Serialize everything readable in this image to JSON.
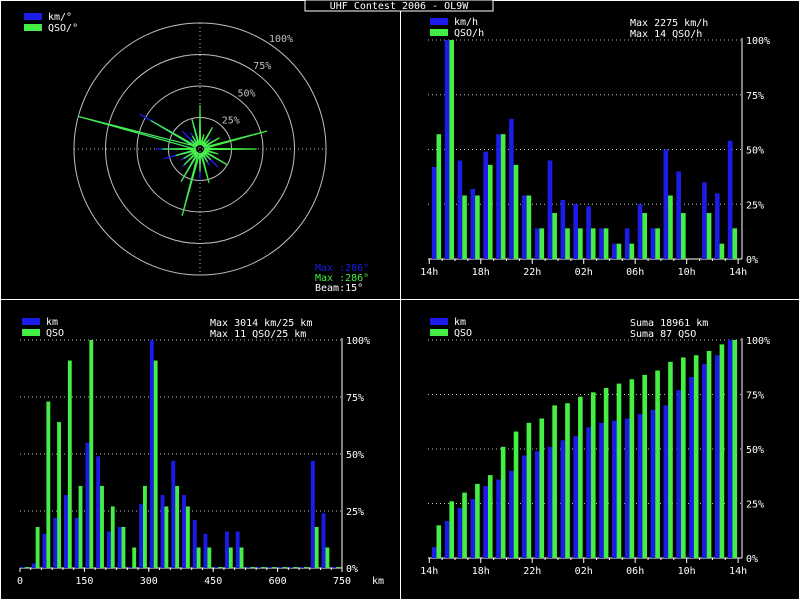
{
  "title": "UHF Contest 2006 - OL9W",
  "colors": {
    "background": "#000000",
    "panel_border": "#ffffff",
    "km_series": "#1c1ce8",
    "qso_series": "#44ee44",
    "grid": "#c0c0c0",
    "text": "#ffffff"
  },
  "chart_data": [
    {
      "type": "polar",
      "panel": "direction",
      "legend": [
        "km/°",
        "QSO/°"
      ],
      "legend_position": "top-left",
      "ring_labels": [
        "25%",
        "50%",
        "75%",
        "100%"
      ],
      "stats": [
        "Max :286°",
        "Max :286°",
        "Beam:15°"
      ],
      "azimuth": [
        0,
        15,
        30,
        45,
        60,
        75,
        90,
        105,
        120,
        135,
        150,
        165,
        180,
        195,
        210,
        225,
        240,
        255,
        270,
        285,
        300,
        315,
        330,
        345
      ],
      "series": [
        {
          "name": "km/°",
          "values": [
            0.22,
            0.1,
            0.08,
            0.12,
            0.1,
            0.2,
            0.25,
            0.12,
            0.1,
            0.2,
            0.15,
            0.12,
            0.25,
            0.55,
            0.3,
            0.2,
            0.18,
            0.3,
            0.35,
            1.0,
            0.55,
            0.2,
            0.15,
            0.25
          ]
        },
        {
          "name": "QSO/°",
          "values": [
            0.35,
            0.12,
            0.2,
            0.1,
            0.18,
            0.55,
            0.45,
            0.15,
            0.25,
            0.12,
            0.12,
            0.28,
            0.18,
            0.55,
            0.3,
            0.18,
            0.15,
            0.2,
            0.3,
            1.0,
            0.45,
            0.1,
            0.12,
            0.25
          ]
        }
      ]
    },
    {
      "type": "bar",
      "panel": "hourly",
      "legend": [
        "km/h",
        "QSO/h"
      ],
      "stats": [
        "Max  2275 km/h",
        "Max   14 QSO/h"
      ],
      "y_ticks": [
        "100%",
        "75%",
        "50%",
        "25%",
        "0%"
      ],
      "x_tick_labels": [
        "14h",
        "18h",
        "22h",
        "02h",
        "06h",
        "10h",
        "14h"
      ],
      "categories": [
        "14h",
        "15h",
        "16h",
        "17h",
        "18h",
        "19h",
        "20h",
        "21h",
        "22h",
        "23h",
        "00h",
        "01h",
        "02h",
        "03h",
        "04h",
        "05h",
        "06h",
        "07h",
        "08h",
        "09h",
        "10h",
        "11h",
        "12h",
        "13h"
      ],
      "ylim": [
        0,
        1
      ],
      "series": [
        {
          "name": "km/h",
          "values": [
            0.42,
            1.0,
            0.45,
            0.32,
            0.49,
            0.57,
            0.64,
            0.29,
            0.14,
            0.45,
            0.27,
            0.25,
            0.24,
            0.14,
            0.07,
            0.14,
            0.25,
            0.14,
            0.5,
            0.4,
            0.0,
            0.35,
            0.3,
            0.54
          ]
        },
        {
          "name": "QSO/h",
          "values": [
            0.57,
            1.0,
            0.29,
            0.29,
            0.43,
            0.57,
            0.43,
            0.29,
            0.14,
            0.21,
            0.14,
            0.14,
            0.14,
            0.14,
            0.07,
            0.07,
            0.21,
            0.14,
            0.29,
            0.21,
            0.0,
            0.21,
            0.07,
            0.14
          ]
        }
      ]
    },
    {
      "type": "bar",
      "panel": "distance",
      "legend": [
        "km",
        "QSO"
      ],
      "stats": [
        "Max  3014 km/25 km",
        "Max   11 QSO/25 km"
      ],
      "y_ticks": [
        "100%",
        "75%",
        "50%",
        "25%",
        "0%"
      ],
      "x_tick_labels": [
        "0",
        "150",
        "300",
        "450",
        "600",
        "750"
      ],
      "x_unit": "km",
      "xlim": [
        0,
        750
      ],
      "bin_size": 25,
      "bin_starts": [
        0,
        25,
        50,
        75,
        100,
        125,
        150,
        175,
        200,
        225,
        250,
        275,
        300,
        325,
        350,
        375,
        400,
        425,
        450,
        475,
        500,
        525,
        550,
        575,
        600,
        625,
        650,
        675,
        700,
        725
      ],
      "ylim": [
        0,
        1
      ],
      "series": [
        {
          "name": "km",
          "values": [
            0.01,
            0.02,
            0.15,
            0.22,
            0.32,
            0.22,
            0.55,
            0.49,
            0.16,
            0.18,
            0.0,
            0.28,
            1.0,
            0.32,
            0.47,
            0.32,
            0.21,
            0.15,
            0.0,
            0.16,
            0.16,
            0.0,
            0.01,
            0.01,
            0.01,
            0.01,
            0.01,
            0.47,
            0.24,
            0.0
          ]
        },
        {
          "name": "QSO",
          "values": [
            0.0,
            0.18,
            0.73,
            0.64,
            0.91,
            0.36,
            1.0,
            0.36,
            0.27,
            0.18,
            0.09,
            0.36,
            0.91,
            0.27,
            0.36,
            0.27,
            0.09,
            0.09,
            0.0,
            0.09,
            0.09,
            0.0,
            0.0,
            0.0,
            0.0,
            0.0,
            0.0,
            0.18,
            0.09,
            0.0
          ]
        }
      ]
    },
    {
      "type": "bar",
      "panel": "cumulative",
      "legend": [
        "km",
        "QSO"
      ],
      "stats": [
        "Suma  18961 km",
        "Suma    87 QSO"
      ],
      "y_ticks": [
        "100%",
        "75%",
        "50%",
        "25%",
        "0%"
      ],
      "x_tick_labels": [
        "14h",
        "18h",
        "22h",
        "02h",
        "06h",
        "10h",
        "14h"
      ],
      "categories": [
        "14h",
        "15h",
        "16h",
        "17h",
        "18h",
        "19h",
        "20h",
        "21h",
        "22h",
        "23h",
        "00h",
        "01h",
        "02h",
        "03h",
        "04h",
        "05h",
        "06h",
        "07h",
        "08h",
        "09h",
        "10h",
        "11h",
        "12h",
        "13h"
      ],
      "ylim": [
        0,
        1
      ],
      "series": [
        {
          "name": "km",
          "values": [
            0.05,
            0.17,
            0.23,
            0.27,
            0.33,
            0.36,
            0.4,
            0.47,
            0.49,
            0.51,
            0.54,
            0.56,
            0.6,
            0.62,
            0.63,
            0.64,
            0.66,
            0.68,
            0.7,
            0.77,
            0.83,
            0.89,
            0.93,
            1.0
          ]
        },
        {
          "name": "QSO",
          "values": [
            0.15,
            0.26,
            0.3,
            0.34,
            0.38,
            0.51,
            0.58,
            0.62,
            0.64,
            0.7,
            0.71,
            0.74,
            0.76,
            0.78,
            0.8,
            0.82,
            0.84,
            0.86,
            0.9,
            0.92,
            0.93,
            0.95,
            0.98,
            1.0
          ]
        }
      ]
    }
  ]
}
